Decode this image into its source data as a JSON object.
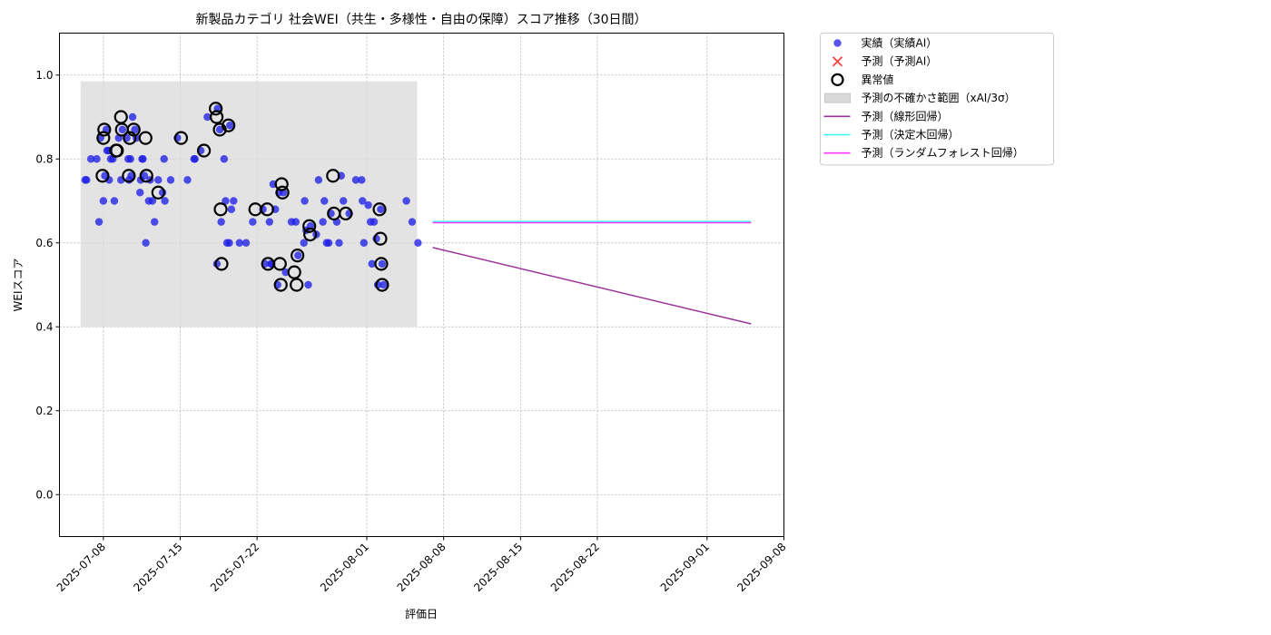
{
  "chart_data": {
    "type": "scatter",
    "title": "新製品カテゴリ 社会WEI（共生・多様性・自由の保障）スコア推移（30日間）",
    "xlabel": "評価日",
    "ylabel": "WEIスコア",
    "xlim": [
      "2025-07-04",
      "2025-09-08"
    ],
    "ylim": [
      -0.1,
      1.1
    ],
    "x_ticks": [
      "2025-07-08",
      "2025-07-15",
      "2025-07-22",
      "2025-08-01",
      "2025-08-08",
      "2025-08-15",
      "2025-08-22",
      "2025-09-01",
      "2025-09-08"
    ],
    "y_ticks": [
      "0.0",
      "0.2",
      "0.4",
      "0.6",
      "0.8",
      "1.0"
    ],
    "grid": true,
    "legend_position": "outside upper right",
    "legend": [
      {
        "label": "実績（実績AI）",
        "kind": "dot",
        "color": "#2a2ae8"
      },
      {
        "label": "予測（予測AI）",
        "kind": "cross",
        "color": "#ff4444"
      },
      {
        "label": "異常値",
        "kind": "ring",
        "color": "#000000"
      },
      {
        "label": "予測の不確かさ範囲（xAI/3σ）",
        "kind": "band",
        "color": "#d9d9d9"
      },
      {
        "label": "予測（線形回帰）",
        "kind": "line",
        "color": "#993399"
      },
      {
        "label": "予測（決定木回帰）",
        "kind": "line",
        "color": "#33ffff"
      },
      {
        "label": "予測（ランダムフォレスト回帰）",
        "kind": "line",
        "color": "#ff33ff"
      }
    ],
    "uncertainty_band": {
      "x": [
        "2025-07-07",
        "2025-08-06"
      ],
      "y": [
        0.4,
        0.985
      ]
    },
    "actual": [
      [
        "2025-07-07",
        0.75
      ],
      [
        "2025-07-07",
        0.8
      ],
      [
        "2025-07-07",
        0.8
      ],
      [
        "2025-07-07",
        0.75
      ],
      [
        "2025-07-08",
        0.7
      ],
      [
        "2025-07-08",
        0.75
      ],
      [
        "2025-07-08",
        0.65
      ],
      [
        "2025-07-08",
        0.76
      ],
      [
        "2025-07-08",
        0.8
      ],
      [
        "2025-07-08",
        0.85
      ],
      [
        "2025-07-08",
        0.87
      ],
      [
        "2025-07-09",
        0.82
      ],
      [
        "2025-07-09",
        0.8
      ],
      [
        "2025-07-09",
        0.85
      ],
      [
        "2025-07-09",
        0.82
      ],
      [
        "2025-07-09",
        0.7
      ],
      [
        "2025-07-10",
        0.76
      ],
      [
        "2025-07-10",
        0.75
      ],
      [
        "2025-07-10",
        0.85
      ],
      [
        "2025-07-10",
        0.9
      ],
      [
        "2025-07-10",
        0.87
      ],
      [
        "2025-07-10",
        0.8
      ],
      [
        "2025-07-11",
        0.75
      ],
      [
        "2025-07-11",
        0.87
      ],
      [
        "2025-07-11",
        0.75
      ],
      [
        "2025-07-11",
        0.8
      ],
      [
        "2025-07-11",
        0.85
      ],
      [
        "2025-07-11",
        0.8
      ],
      [
        "2025-07-12",
        0.8
      ],
      [
        "2025-07-12",
        0.7
      ],
      [
        "2025-07-12",
        0.65
      ],
      [
        "2025-07-12",
        0.76
      ],
      [
        "2025-07-12",
        0.75
      ],
      [
        "2025-07-12",
        0.72
      ],
      [
        "2025-07-12",
        0.6
      ],
      [
        "2025-07-13",
        0.72
      ],
      [
        "2025-07-13",
        0.7
      ],
      [
        "2025-07-13",
        0.75
      ],
      [
        "2025-07-13",
        0.8
      ],
      [
        "2025-07-14",
        0.7
      ],
      [
        "2025-07-14",
        0.75
      ],
      [
        "2025-07-15",
        0.75
      ],
      [
        "2025-07-15",
        0.85
      ],
      [
        "2025-07-16",
        0.8
      ],
      [
        "2025-07-17",
        0.8
      ],
      [
        "2025-07-17",
        0.82
      ],
      [
        "2025-07-18",
        0.92
      ],
      [
        "2025-07-18",
        0.9
      ],
      [
        "2025-07-19",
        0.8
      ],
      [
        "2025-07-19",
        0.88
      ],
      [
        "2025-07-19",
        0.87
      ],
      [
        "2025-07-19",
        0.7
      ],
      [
        "2025-07-19",
        0.68
      ],
      [
        "2025-07-19",
        0.65
      ],
      [
        "2025-07-19",
        0.6
      ],
      [
        "2025-07-19",
        0.55
      ],
      [
        "2025-07-20",
        0.7
      ],
      [
        "2025-07-20",
        0.6
      ],
      [
        "2025-07-20",
        0.6
      ],
      [
        "2025-07-21",
        0.6
      ],
      [
        "2025-07-22",
        0.68
      ],
      [
        "2025-07-22",
        0.65
      ],
      [
        "2025-07-23",
        0.65
      ],
      [
        "2025-07-23",
        0.68
      ],
      [
        "2025-07-23",
        0.55
      ],
      [
        "2025-07-23",
        0.55
      ],
      [
        "2025-07-24",
        0.55
      ],
      [
        "2025-07-24",
        0.5
      ],
      [
        "2025-07-24",
        0.72
      ],
      [
        "2025-07-24",
        0.74
      ],
      [
        "2025-07-24",
        0.72
      ],
      [
        "2025-07-25",
        0.65
      ],
      [
        "2025-07-25",
        0.53
      ],
      [
        "2025-07-25",
        0.65
      ],
      [
        "2025-07-26",
        0.5
      ],
      [
        "2025-07-26",
        0.57
      ],
      [
        "2025-07-26",
        0.6
      ],
      [
        "2025-07-27",
        0.7
      ],
      [
        "2025-07-27",
        0.64
      ],
      [
        "2025-07-27",
        0.62
      ],
      [
        "2025-07-27",
        0.63
      ],
      [
        "2025-07-28",
        0.65
      ],
      [
        "2025-07-28",
        0.6
      ],
      [
        "2025-07-28",
        0.75
      ],
      [
        "2025-07-28",
        0.7
      ],
      [
        "2025-07-29",
        0.76
      ],
      [
        "2025-07-29",
        0.67
      ],
      [
        "2025-07-29",
        0.65
      ],
      [
        "2025-07-29",
        0.6
      ],
      [
        "2025-07-30",
        0.7
      ],
      [
        "2025-07-30",
        0.67
      ],
      [
        "2025-07-30",
        0.6
      ],
      [
        "2025-07-31",
        0.75
      ],
      [
        "2025-07-31",
        0.75
      ],
      [
        "2025-08-01",
        0.7
      ],
      [
        "2025-08-01",
        0.69
      ],
      [
        "2025-08-01",
        0.65
      ],
      [
        "2025-08-01",
        0.6
      ],
      [
        "2025-08-02",
        0.68
      ],
      [
        "2025-08-02",
        0.65
      ],
      [
        "2025-08-02",
        0.61
      ],
      [
        "2025-08-02",
        0.55
      ],
      [
        "2025-08-02",
        0.55
      ],
      [
        "2025-08-02",
        0.5
      ],
      [
        "2025-08-02",
        0.5
      ],
      [
        "2025-08-05",
        0.7
      ],
      [
        "2025-08-05",
        0.65
      ],
      [
        "2025-08-05",
        0.6
      ]
    ],
    "anomalies": [
      [
        "2025-07-08",
        0.76
      ],
      [
        "2025-07-08",
        0.85
      ],
      [
        "2025-07-08",
        0.87
      ],
      [
        "2025-07-09",
        0.82
      ],
      [
        "2025-07-09",
        0.82
      ],
      [
        "2025-07-10",
        0.76
      ],
      [
        "2025-07-10",
        0.85
      ],
      [
        "2025-07-10",
        0.9
      ],
      [
        "2025-07-10",
        0.87
      ],
      [
        "2025-07-11",
        0.87
      ],
      [
        "2025-07-12",
        0.85
      ],
      [
        "2025-07-12",
        0.76
      ],
      [
        "2025-07-13",
        0.72
      ],
      [
        "2025-07-15",
        0.85
      ],
      [
        "2025-07-17",
        0.82
      ],
      [
        "2025-07-18",
        0.92
      ],
      [
        "2025-07-18",
        0.9
      ],
      [
        "2025-07-19",
        0.88
      ],
      [
        "2025-07-19",
        0.87
      ],
      [
        "2025-07-19",
        0.68
      ],
      [
        "2025-07-19",
        0.55
      ],
      [
        "2025-07-22",
        0.68
      ],
      [
        "2025-07-23",
        0.68
      ],
      [
        "2025-07-23",
        0.55
      ],
      [
        "2025-07-24",
        0.55
      ],
      [
        "2025-07-24",
        0.5
      ],
      [
        "2025-07-24",
        0.74
      ],
      [
        "2025-07-24",
        0.72
      ],
      [
        "2025-07-25",
        0.53
      ],
      [
        "2025-07-26",
        0.5
      ],
      [
        "2025-07-26",
        0.57
      ],
      [
        "2025-07-27",
        0.64
      ],
      [
        "2025-07-27",
        0.62
      ],
      [
        "2025-07-29",
        0.76
      ],
      [
        "2025-07-29",
        0.67
      ],
      [
        "2025-07-30",
        0.67
      ],
      [
        "2025-08-02",
        0.68
      ],
      [
        "2025-08-02",
        0.61
      ],
      [
        "2025-08-02",
        0.55
      ],
      [
        "2025-08-02",
        0.5
      ]
    ],
    "forecast_lines": [
      {
        "name": "予測（線形回帰）",
        "color": "#993399",
        "x": [
          "2025-08-07",
          "2025-09-05"
        ],
        "y": [
          0.589,
          0.407
        ]
      },
      {
        "name": "予測（決定木回帰）",
        "color": "#33ffff",
        "x": [
          "2025-08-07",
          "2025-09-05"
        ],
        "y": [
          0.651,
          0.651
        ]
      },
      {
        "name": "予測（ランダムフォレスト回帰）",
        "color": "#ff33ff",
        "x": [
          "2025-08-07",
          "2025-09-05"
        ],
        "y": [
          0.648,
          0.648
        ]
      }
    ]
  }
}
